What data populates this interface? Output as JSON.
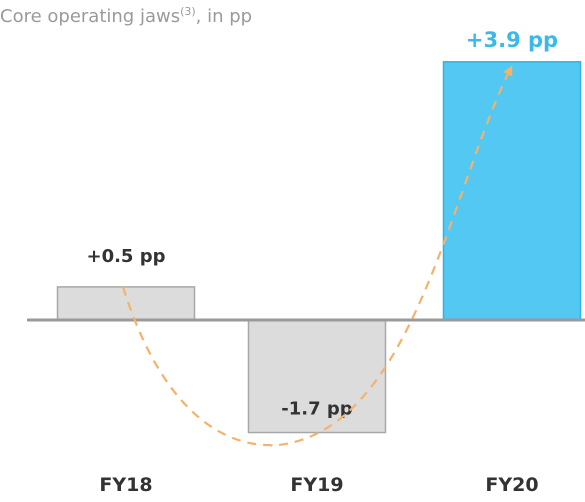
{
  "chart_data": {
    "type": "bar",
    "title": "Core operating jaws",
    "title_superscript": "(3)",
    "title_suffix": ", in pp",
    "categories": [
      "FY18",
      "FY19",
      "FY20"
    ],
    "values": [
      0.5,
      -1.7,
      3.9
    ],
    "data_labels": [
      "+0.5 pp",
      "-1.7 pp",
      "+3.9 pp"
    ],
    "colors": {
      "neutral_fill": "#dcdcdc",
      "neutral_stroke": "#a8a8a8",
      "highlight_fill": "#52c8f2",
      "highlight_stroke": "#2cb4e6",
      "highlight_label": "#3ab9ea",
      "baseline": "#9a9a9a",
      "trend_arrow": "#f4b26b"
    },
    "highlight_index": 2,
    "trend_arrow": true,
    "grid": false
  }
}
